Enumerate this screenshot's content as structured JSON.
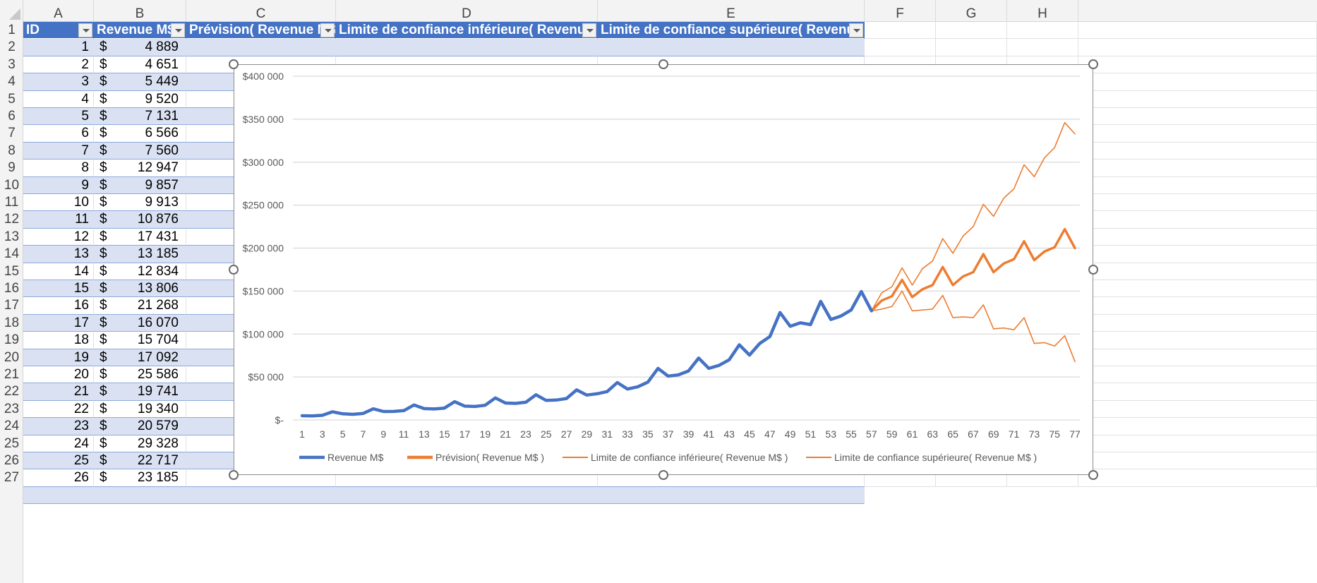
{
  "columns": [
    "A",
    "B",
    "C",
    "D",
    "E",
    "F",
    "G",
    "H"
  ],
  "row_numbers": [
    "1",
    "2",
    "3",
    "4",
    "5",
    "6",
    "7",
    "8",
    "9",
    "10",
    "11",
    "12",
    "13",
    "14",
    "15",
    "16",
    "17",
    "18",
    "19",
    "20",
    "21",
    "22",
    "23",
    "24",
    "25",
    "26",
    "27"
  ],
  "table": {
    "headers": [
      "ID",
      "Revenue M$",
      "Prévision( Revenue M$ )",
      "Limite de confiance inférieure( Revenue M$ )",
      "Limite de confiance supérieure( Revenue M$ )"
    ],
    "currency_symbol": "$",
    "rows": [
      {
        "id": "1",
        "revenue": "4 889"
      },
      {
        "id": "2",
        "revenue": "4 651"
      },
      {
        "id": "3",
        "revenue": "5 449"
      },
      {
        "id": "4",
        "revenue": "9 520"
      },
      {
        "id": "5",
        "revenue": "7 131"
      },
      {
        "id": "6",
        "revenue": "6 566"
      },
      {
        "id": "7",
        "revenue": "7 560"
      },
      {
        "id": "8",
        "revenue": "12 947"
      },
      {
        "id": "9",
        "revenue": "9 857"
      },
      {
        "id": "10",
        "revenue": "9 913"
      },
      {
        "id": "11",
        "revenue": "10 876"
      },
      {
        "id": "12",
        "revenue": "17 431"
      },
      {
        "id": "13",
        "revenue": "13 185"
      },
      {
        "id": "14",
        "revenue": "12 834"
      },
      {
        "id": "15",
        "revenue": "13 806"
      },
      {
        "id": "16",
        "revenue": "21 268"
      },
      {
        "id": "17",
        "revenue": "16 070"
      },
      {
        "id": "18",
        "revenue": "15 704"
      },
      {
        "id": "19",
        "revenue": "17 092"
      },
      {
        "id": "20",
        "revenue": "25 586"
      },
      {
        "id": "21",
        "revenue": "19 741"
      },
      {
        "id": "22",
        "revenue": "19 340"
      },
      {
        "id": "23",
        "revenue": "20 579"
      },
      {
        "id": "24",
        "revenue": "29 328"
      },
      {
        "id": "25",
        "revenue": "22 717"
      },
      {
        "id": "26",
        "revenue": "23 185"
      }
    ]
  },
  "colors": {
    "table_header": "#4472c4",
    "band": "#d9e1f2",
    "series_actual": "#4472c4",
    "series_forecast": "#ed7d31",
    "gridline": "#d9d9d9"
  },
  "chart_data": {
    "type": "line",
    "title": "",
    "xlabel": "",
    "ylabel": "",
    "ylim": [
      0,
      400000
    ],
    "y_ticks": [
      "$-",
      "$50 000",
      "$100 000",
      "$150 000",
      "$200 000",
      "$250 000",
      "$300 000",
      "$350 000",
      "$400 000"
    ],
    "x_tick_labels": [
      "1",
      "3",
      "5",
      "7",
      "9",
      "11",
      "13",
      "15",
      "17",
      "19",
      "21",
      "23",
      "25",
      "27",
      "29",
      "31",
      "33",
      "35",
      "37",
      "39",
      "41",
      "43",
      "45",
      "47",
      "49",
      "51",
      "53",
      "55",
      "57",
      "59",
      "61",
      "63",
      "65",
      "67",
      "69",
      "71",
      "73",
      "75",
      "77"
    ],
    "x_count": 77,
    "grid": true,
    "legend_position": "bottom",
    "series": [
      {
        "name": "Revenue M$",
        "start": 1,
        "values": [
          4889,
          4651,
          5449,
          9520,
          7131,
          6566,
          7560,
          12947,
          9857,
          9913,
          10876,
          17431,
          13185,
          12834,
          13806,
          21268,
          16070,
          15704,
          17092,
          25586,
          19741,
          19340,
          20579,
          29328,
          22717,
          23185,
          25000,
          35000,
          29000,
          30500,
          33000,
          43500,
          36000,
          38500,
          44000,
          60000,
          51000,
          52500,
          57000,
          72000,
          60000,
          63500,
          70000,
          87500,
          75500,
          89000,
          97000,
          125000,
          109000,
          113000,
          111000,
          138000,
          117000,
          121000,
          128000,
          149500,
          127000
        ]
      },
      {
        "name": "Prévision( Revenue M$ )",
        "start": 57,
        "values": [
          127000,
          139000,
          144000,
          163000,
          143000,
          152000,
          157000,
          178000,
          157000,
          167000,
          172000,
          193000,
          172000,
          182000,
          187000,
          208000,
          186000,
          196000,
          201000,
          222000,
          200000
        ]
      },
      {
        "name": "Limite de confiance inférieure( Revenue M$ )",
        "start": 57,
        "values": [
          127000,
          129000,
          132000,
          150000,
          127000,
          128000,
          129000,
          145000,
          119000,
          120000,
          119000,
          134000,
          106000,
          107000,
          105000,
          119000,
          89000,
          90000,
          86000,
          98000,
          68000
        ]
      },
      {
        "name": "Limite de confiance supérieure( Revenue M$ )",
        "start": 57,
        "values": [
          127000,
          148000,
          155000,
          177000,
          157000,
          176000,
          185000,
          211000,
          194000,
          214000,
          225000,
          251000,
          237000,
          258000,
          269000,
          297000,
          283000,
          305000,
          317000,
          346000,
          333000
        ]
      }
    ]
  }
}
